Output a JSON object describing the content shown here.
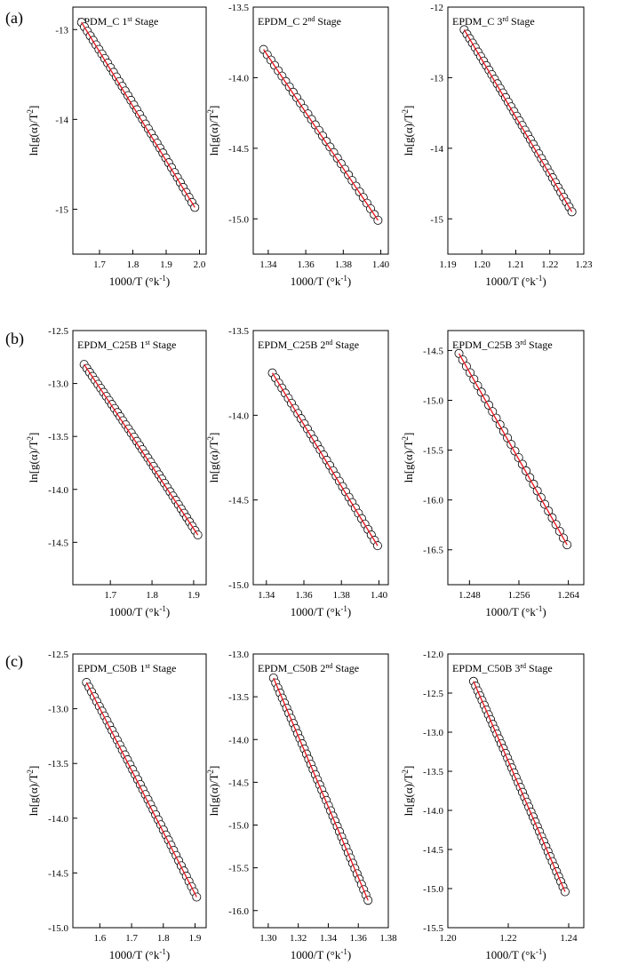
{
  "row_labels": [
    "(a)",
    "(b)",
    "(c)"
  ],
  "style": {
    "marker_stroke": "#000000",
    "marker_fill": "#ffffff",
    "fit_color": "#e8101a"
  },
  "chart_data": [
    {
      "type": "scatter",
      "row": 0,
      "col": 0,
      "title": {
        "main": "EPDM_C 1",
        "sup": "st",
        "rest": " Stage"
      },
      "xlabel": "1000/T (°k",
      "xlabel_sup": "-1",
      "xlabel_end": ")",
      "ylabel": "ln[g(α)/T",
      "ylabel_sup": "2",
      "ylabel_end": "]",
      "xlim": [
        1.62,
        2.02
      ],
      "ylim": [
        -15.5,
        -12.75
      ],
      "xticks": [
        1.7,
        1.8,
        1.9,
        2.0
      ],
      "xtick_labels": [
        "1.7",
        "1.8",
        "1.9",
        "2.0"
      ],
      "yticks": [
        -13,
        -14,
        -15
      ],
      "ytick_labels": [
        "-13",
        "-14",
        "-15"
      ],
      "x": [
        1.646,
        1.986
      ],
      "y": [
        -12.92,
        -14.98
      ],
      "n_points": 40,
      "curve": 0.06
    },
    {
      "type": "scatter",
      "row": 0,
      "col": 1,
      "title": {
        "main": "EPDM_C 2",
        "sup": "nd",
        "rest": " Stage"
      },
      "xlabel": "1000/T (°k",
      "xlabel_sup": "-1",
      "xlabel_end": ")",
      "ylabel": "ln[g(α)/T",
      "ylabel_sup": "2",
      "ylabel_end": "]",
      "xlim": [
        1.332,
        1.404
      ],
      "ylim": [
        -15.25,
        -13.5
      ],
      "xticks": [
        1.34,
        1.36,
        1.38,
        1.4
      ],
      "xtick_labels": [
        "1.34",
        "1.36",
        "1.38",
        "1.40"
      ],
      "yticks": [
        -13.5,
        -14.0,
        -14.5,
        -15.0
      ],
      "ytick_labels": [
        "-13.5",
        "-14.0",
        "-14.5",
        "-15.0"
      ],
      "x": [
        1.3375,
        1.3985
      ],
      "y": [
        -13.8,
        -15.01
      ],
      "n_points": 32,
      "curve": 0.04
    },
    {
      "type": "scatter",
      "row": 0,
      "col": 2,
      "title": {
        "main": "EPDM_C 3",
        "sup": "rd",
        "rest": " Stage"
      },
      "xlabel": "1000/T (°k",
      "xlabel_sup": "-1",
      "xlabel_end": ")",
      "ylabel": "ln[g(α)/T",
      "ylabel_sup": "2",
      "ylabel_end": "]",
      "xlim": [
        1.19,
        1.23
      ],
      "ylim": [
        -15.5,
        -12.0
      ],
      "xticks": [
        1.19,
        1.2,
        1.21,
        1.22,
        1.23
      ],
      "xtick_labels": [
        "1.19",
        "1.20",
        "1.21",
        "1.22",
        "1.23"
      ],
      "yticks": [
        -12,
        -13,
        -14,
        -15
      ],
      "ytick_labels": [
        "-12",
        "-13",
        "-14",
        "-15"
      ],
      "x": [
        1.1948,
        1.2265
      ],
      "y": [
        -12.32,
        -14.9
      ],
      "n_points": 40,
      "curve": 0.05
    },
    {
      "type": "scatter",
      "row": 1,
      "col": 0,
      "title": {
        "main": "EPDM_C25B 1",
        "sup": "st",
        "rest": " Stage"
      },
      "xlabel": "1000/T (°k",
      "xlabel_sup": "-1",
      "xlabel_end": ")",
      "ylabel": "ln[g(α)/T",
      "ylabel_sup": "2",
      "ylabel_end": "]",
      "xlim": [
        1.61,
        1.93
      ],
      "ylim": [
        -14.9,
        -12.5
      ],
      "xticks": [
        1.7,
        1.8,
        1.9
      ],
      "xtick_labels": [
        "1.7",
        "1.8",
        "1.9"
      ],
      "yticks": [
        -12.5,
        -13.0,
        -13.5,
        -14.0,
        -14.5
      ],
      "ytick_labels": [
        "-12.5",
        "-13.0",
        "-13.5",
        "-14.0",
        "-14.5"
      ],
      "x": [
        1.637,
        1.91
      ],
      "y": [
        -12.82,
        -14.43
      ],
      "n_points": 42,
      "curve": 0.05
    },
    {
      "type": "scatter",
      "row": 1,
      "col": 1,
      "title": {
        "main": "EPDM_C25B 2",
        "sup": "nd",
        "rest": " Stage"
      },
      "xlabel": "1000/T (°k",
      "xlabel_sup": "-1",
      "xlabel_end": ")",
      "ylabel": "ln[g(α)/T",
      "ylabel_sup": "2",
      "ylabel_end": "]",
      "xlim": [
        1.333,
        1.405
      ],
      "ylim": [
        -15.0,
        -13.5
      ],
      "xticks": [
        1.34,
        1.36,
        1.38,
        1.4
      ],
      "xtick_labels": [
        "1.34",
        "1.36",
        "1.38",
        "1.40"
      ],
      "yticks": [
        -13.5,
        -14.0,
        -14.5,
        -15.0
      ],
      "ytick_labels": [
        "-13.5",
        "-14.0",
        "-14.5",
        "-15.0"
      ],
      "x": [
        1.3432,
        1.3993
      ],
      "y": [
        -13.75,
        -14.77
      ],
      "n_points": 34,
      "curve": 0.04
    },
    {
      "type": "scatter",
      "row": 1,
      "col": 2,
      "title": {
        "main": "EPDM_C25B 3",
        "sup": "rd",
        "rest": " Stage"
      },
      "xlabel": "1000/T (°k",
      "xlabel_sup": "-1",
      "xlabel_end": ")",
      "ylabel": "ln[g(α)/T",
      "ylabel_sup": "2",
      "ylabel_end": "]",
      "xlim": [
        1.2445,
        1.2665
      ],
      "ylim": [
        -16.85,
        -14.3
      ],
      "xticks": [
        1.248,
        1.256,
        1.264
      ],
      "xtick_labels": [
        "1.248",
        "1.256",
        "1.264"
      ],
      "yticks": [
        -14.5,
        -15.0,
        -15.5,
        -16.0,
        -16.5
      ],
      "ytick_labels": [
        "-14.5",
        "-15.0",
        "-15.5",
        "-16.0",
        "-16.5"
      ],
      "x": [
        1.2463,
        1.2638
      ],
      "y": [
        -14.53,
        -16.45
      ],
      "n_points": 30,
      "curve": 0.03
    },
    {
      "type": "scatter",
      "row": 2,
      "col": 0,
      "title": {
        "main": "EPDM_C50B 1",
        "sup": "st",
        "rest": " Stage"
      },
      "xlabel": "1000/T (°k",
      "xlabel_sup": "-1",
      "xlabel_end": ")",
      "ylabel": "ln[g(α)/T",
      "ylabel_sup": "2",
      "ylabel_end": "]",
      "xlim": [
        1.515,
        1.935
      ],
      "ylim": [
        -15.0,
        -12.5
      ],
      "xticks": [
        1.6,
        1.7,
        1.8,
        1.9
      ],
      "xtick_labels": [
        "1.6",
        "1.7",
        "1.8",
        "1.9"
      ],
      "yticks": [
        -12.5,
        -13.0,
        -13.5,
        -14.0,
        -14.5,
        -15.0
      ],
      "ytick_labels": [
        "-12.5",
        "-13.0",
        "-13.5",
        "-14.0",
        "-14.5",
        "-15.0"
      ],
      "x": [
        1.558,
        1.905
      ],
      "y": [
        -12.76,
        -14.72
      ],
      "n_points": 44,
      "curve": 0.05
    },
    {
      "type": "scatter",
      "row": 2,
      "col": 1,
      "title": {
        "main": "EPDM_C50B 2",
        "sup": "nd",
        "rest": " Stage"
      },
      "xlabel": "1000/T (°k",
      "xlabel_sup": "-1",
      "xlabel_end": ")",
      "ylabel": "ln[g(α)/T",
      "ylabel_sup": "2",
      "ylabel_end": "]",
      "xlim": [
        1.29,
        1.38
      ],
      "ylim": [
        -16.2,
        -13.0
      ],
      "xticks": [
        1.3,
        1.32,
        1.34,
        1.36,
        1.38
      ],
      "xtick_labels": [
        "1.30",
        "1.32",
        "1.34",
        "1.36",
        "1.38"
      ],
      "yticks": [
        -13.0,
        -13.5,
        -14.0,
        -14.5,
        -15.0,
        -15.5,
        -16.0
      ],
      "ytick_labels": [
        "-13.0",
        "-13.5",
        "-14.0",
        "-14.5",
        "-15.0",
        "-15.5",
        "-16.0"
      ],
      "x": [
        1.3035,
        1.3665
      ],
      "y": [
        -13.28,
        -15.88
      ],
      "n_points": 44,
      "curve": 0.03
    },
    {
      "type": "scatter",
      "row": 2,
      "col": 2,
      "title": {
        "main": "EPDM_C50B 3",
        "sup": "rd",
        "rest": " Stage"
      },
      "xlabel": "1000/T (°k",
      "xlabel_sup": "-1",
      "xlabel_end": ")",
      "ylabel": "ln[g(α)/T",
      "ylabel_sup": "2",
      "ylabel_end": "]",
      "xlim": [
        1.2,
        1.245
      ],
      "ylim": [
        -15.5,
        -12.0
      ],
      "xticks": [
        1.2,
        1.22,
        1.24
      ],
      "xtick_labels": [
        "1.20",
        "1.22",
        "1.24"
      ],
      "yticks": [
        -12.0,
        -12.5,
        -13.0,
        -13.5,
        -14.0,
        -14.5,
        -15.0,
        -15.5
      ],
      "ytick_labels": [
        "-12.0",
        "-12.5",
        "-13.0",
        "-13.5",
        "-14.0",
        "-14.5",
        "-15.0",
        "-15.5"
      ],
      "x": [
        1.2085,
        1.2388
      ],
      "y": [
        -12.35,
        -15.04
      ],
      "n_points": 44,
      "curve": 0.03
    }
  ]
}
